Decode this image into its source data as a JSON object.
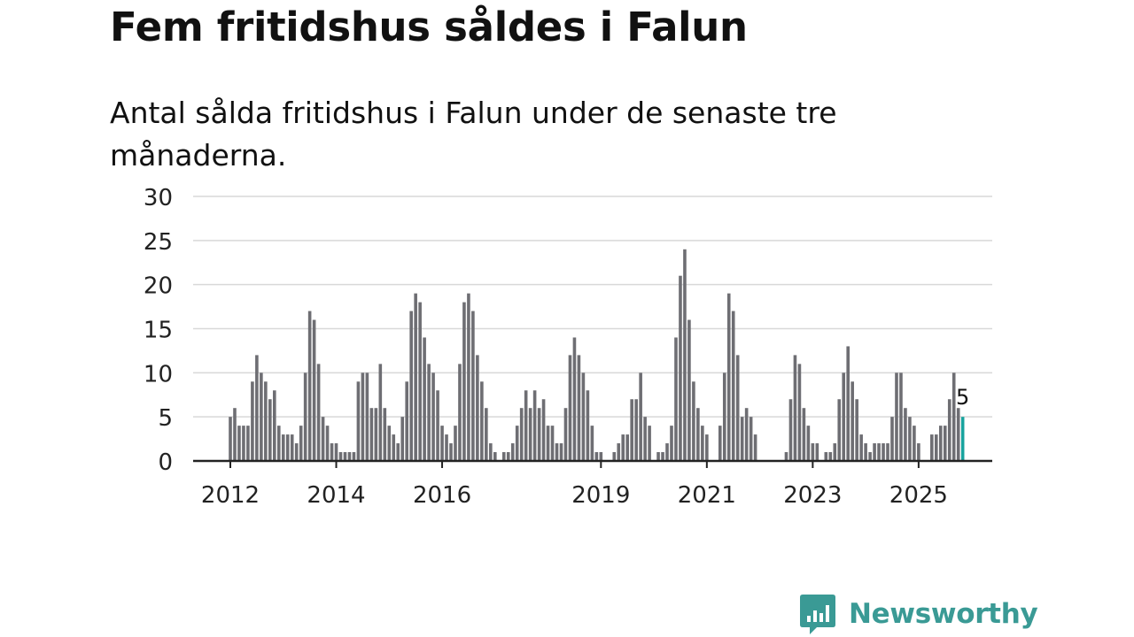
{
  "title": "Fem fritidshus såldes i Falun",
  "subtitle": "Antal sålda fritidshus i Falun under de senaste tre månaderna.",
  "brand": {
    "name": "Newsworthy",
    "icon": "newsworthy-logo-icon",
    "color": "#3a9a95"
  },
  "chart_data": {
    "type": "bar",
    "title": "Fem fritidshus såldes i Falun",
    "subtitle": "Antal sålda fritidshus i Falun under de senaste tre månaderna.",
    "ylim": [
      0,
      30
    ],
    "yticks": [
      "0",
      "5",
      "10",
      "15",
      "20",
      "25",
      "30"
    ],
    "xticks": [
      "2012",
      "2014",
      "2016",
      "2019",
      "2021",
      "2023",
      "2025"
    ],
    "grid": true,
    "bar_color": "#6e6e73",
    "highlight_color": "#19a39e",
    "highlight_label": "5",
    "series": [
      {
        "values": [
          5,
          6,
          4,
          4,
          4,
          9,
          12,
          10,
          9,
          7,
          8,
          4,
          3,
          3,
          3,
          2,
          4,
          10,
          17,
          16,
          11,
          5,
          4,
          2,
          2,
          1,
          1,
          1,
          1,
          9,
          10,
          10,
          6,
          6,
          11,
          6,
          4,
          3,
          2,
          5,
          9,
          17,
          19,
          18,
          14,
          11,
          10,
          8,
          4,
          3,
          2,
          4,
          11,
          18,
          19,
          17,
          12,
          9,
          6,
          2,
          1,
          0,
          1,
          1,
          2,
          4,
          6,
          8,
          6,
          8,
          6,
          7,
          4,
          4,
          2,
          2,
          6,
          12,
          14,
          12,
          10,
          8,
          4,
          1,
          1,
          0,
          0,
          1,
          2,
          3,
          3,
          7,
          7,
          10,
          5,
          4,
          0,
          1,
          1,
          2,
          4,
          14,
          21,
          24,
          16,
          9,
          6,
          4,
          3,
          0,
          0,
          4,
          10,
          19,
          17,
          12,
          5,
          6,
          5,
          3,
          0,
          0,
          0,
          0,
          0,
          0,
          1,
          7,
          12,
          11,
          6,
          4,
          2,
          2,
          0,
          1,
          1,
          2,
          7,
          10,
          13,
          9,
          7,
          3,
          2,
          1,
          2,
          2,
          2,
          2,
          5,
          10,
          10,
          6,
          5,
          4,
          2,
          0,
          0,
          3,
          3,
          4,
          4,
          7,
          10,
          6,
          5
        ]
      }
    ]
  }
}
